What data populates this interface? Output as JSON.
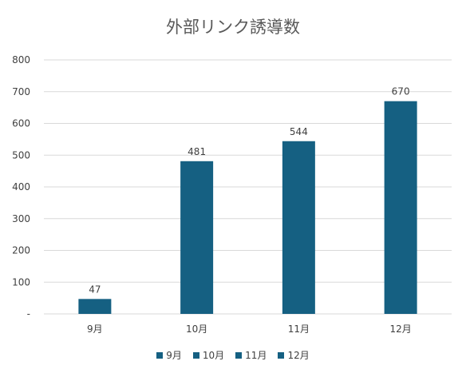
{
  "chart_data": {
    "type": "bar",
    "title": "外部リンク誘導数",
    "xlabel": "",
    "ylabel": "",
    "categories": [
      "9月",
      "10月",
      "11月",
      "12月"
    ],
    "values": [
      47,
      481,
      544,
      670
    ],
    "ylim": [
      0,
      800
    ],
    "yticks": [
      800,
      700,
      600,
      500,
      400,
      300,
      200,
      100
    ],
    "ytick_zero_label": "-",
    "grid": true,
    "data_labels": true,
    "legend": {
      "placement": "bottom",
      "entries": [
        "9月",
        "10月",
        "11月",
        "12月"
      ]
    },
    "colors": {
      "bar": "#156082",
      "grid": "#d9d9d9",
      "text": "#404040",
      "title": "#595959"
    }
  }
}
